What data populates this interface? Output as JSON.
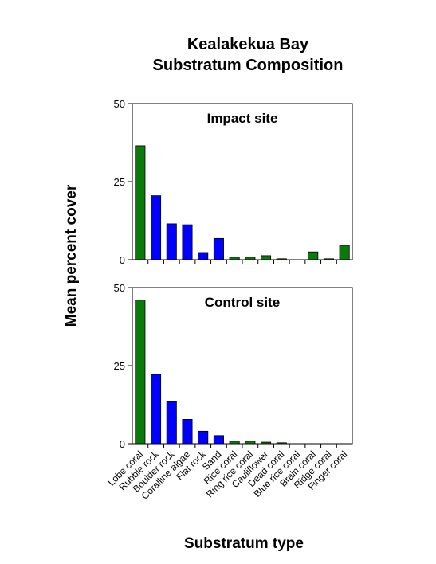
{
  "colors": {
    "coral": "#0a7a0a",
    "substrate": "#0000ff"
  },
  "chart_data": {
    "type": "bar",
    "title_lines": [
      "Kealakekua Bay",
      "Substratum Composition"
    ],
    "xlabel": "Substratum type",
    "ylabel": "Mean percent cover",
    "categories": [
      "Lobe coral",
      "Rubble rock",
      "Boulder rock",
      "Coralline algae",
      "Flat rock",
      "Sand",
      "Rice coral",
      "Ring rice coral",
      "Cauliflower",
      "Dead coral",
      "Blue rice coral",
      "Brain coral",
      "Ridge coral",
      "Finger coral"
    ],
    "category_kind": [
      "coral",
      "substrate",
      "substrate",
      "substrate",
      "substrate",
      "substrate",
      "coral",
      "coral",
      "coral",
      "coral",
      "coral",
      "coral",
      "coral",
      "coral"
    ],
    "ylim": [
      0,
      50
    ],
    "yticks": [
      0,
      25,
      50
    ],
    "grid": false,
    "panels": [
      {
        "label": "Impact site",
        "values": [
          36.5,
          20.5,
          11.5,
          11.2,
          2.3,
          6.8,
          0.8,
          0.8,
          1.3,
          0.3,
          0,
          2.5,
          0.3,
          4.6
        ]
      },
      {
        "label": "Control site",
        "values": [
          46,
          22.2,
          13.5,
          7.8,
          4,
          2.6,
          0.8,
          0.8,
          0.5,
          0.3,
          0,
          0,
          0,
          0
        ]
      }
    ]
  }
}
